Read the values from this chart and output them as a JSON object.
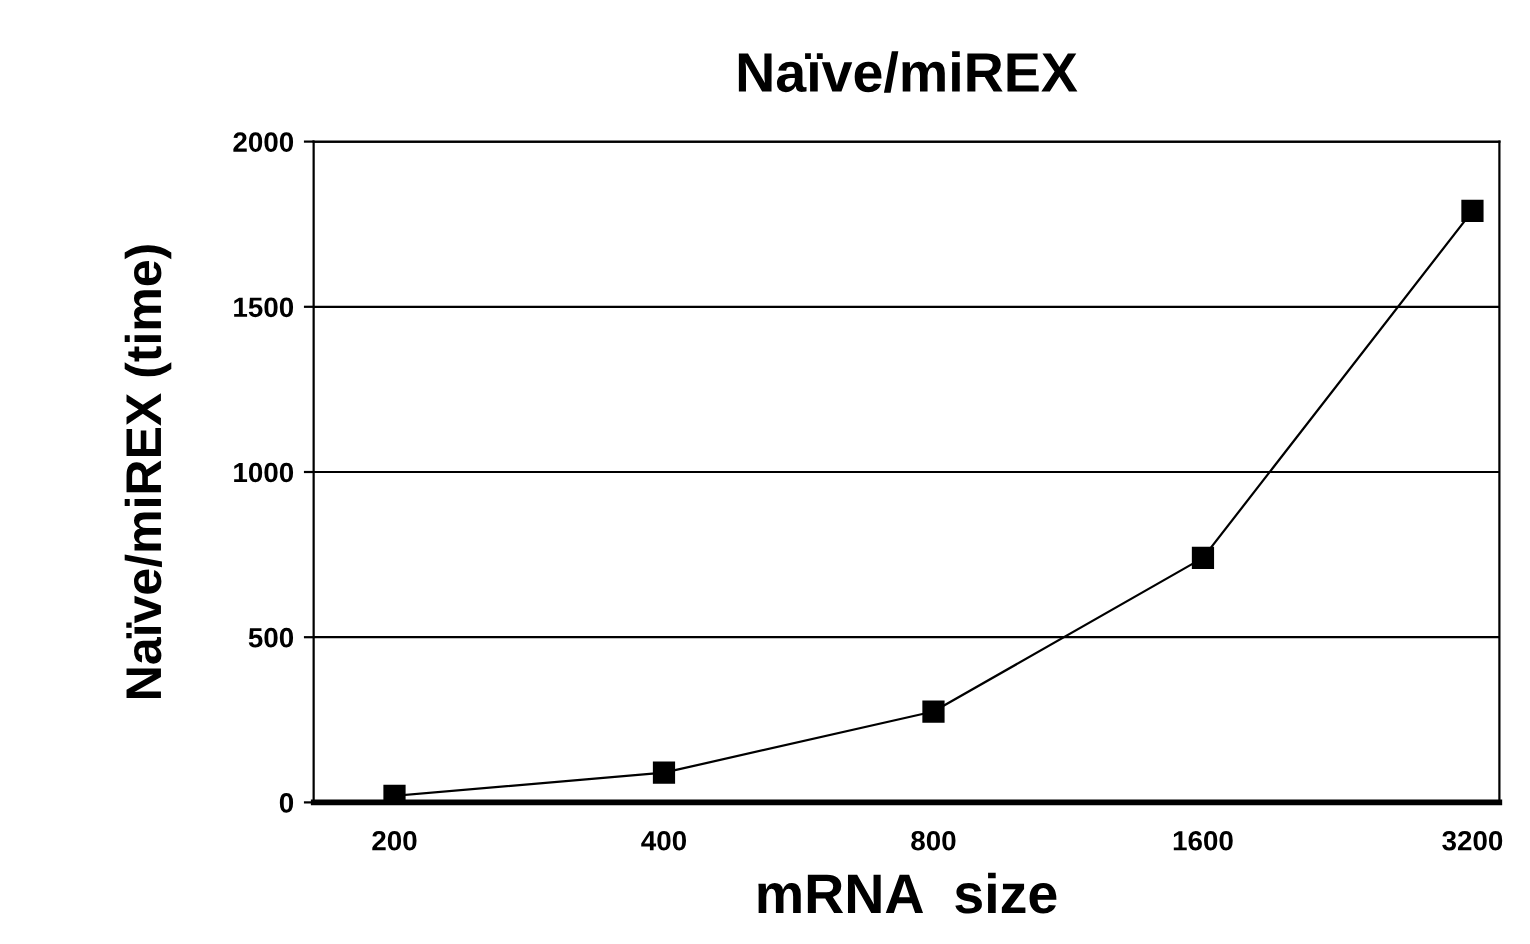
{
  "chart_data": {
    "type": "line",
    "title": "Naïve/miREX",
    "xlabel": "mRNA  size",
    "ylabel": "Naïve/miREX (time)",
    "categories": [
      "200",
      "400",
      "800",
      "1600",
      "3200"
    ],
    "series": [
      {
        "color": "#000000",
        "values": [
          20,
          90,
          275,
          740,
          1790
        ]
      }
    ],
    "ylim": [
      0,
      2000
    ],
    "yticks": [
      0,
      500,
      1000,
      1500,
      2000
    ],
    "grid": "y",
    "marker": "square",
    "line_style": "solid",
    "legend": false
  }
}
